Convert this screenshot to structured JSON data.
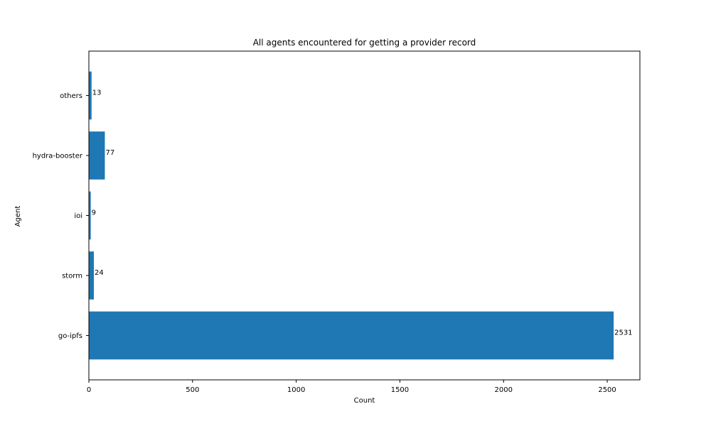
{
  "chart_data": {
    "type": "bar",
    "orientation": "horizontal",
    "title": "All agents encountered for getting a provider record",
    "xlabel": "Count",
    "ylabel": "Agent",
    "categories": [
      "go-ipfs",
      "storm",
      "ioi",
      "hydra-booster",
      "others"
    ],
    "values": [
      2531,
      24,
      9,
      77,
      13
    ],
    "xlim": [
      0,
      2657.55
    ],
    "xticks": [
      0,
      500,
      1000,
      1500,
      2000,
      2500
    ],
    "grid": false,
    "legend": "none",
    "bar_color": "#1f77b4"
  }
}
